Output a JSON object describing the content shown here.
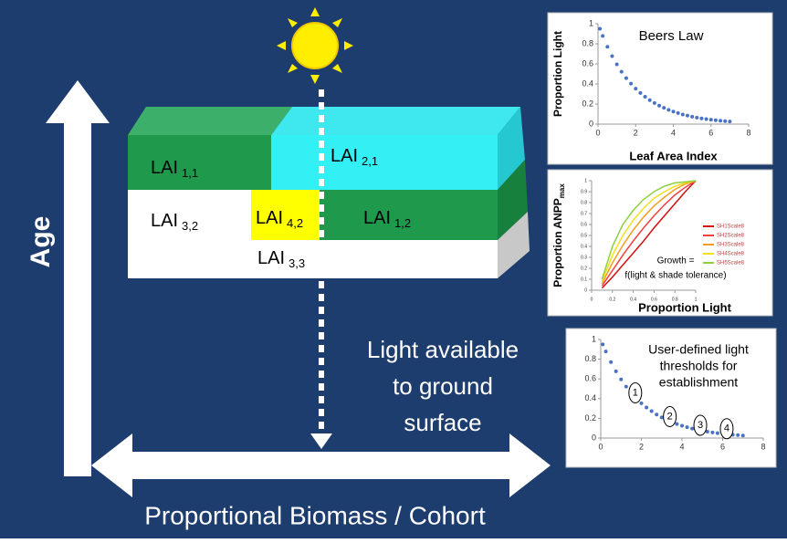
{
  "diagram": {
    "age_label": "Age",
    "biomass_label": "Proportional Biomass / Cohort",
    "light_text": [
      "Light available",
      "to ground",
      "surface"
    ],
    "lai_blocks": [
      {
        "label": "LAI",
        "sub": "1,1"
      },
      {
        "label": "LAI",
        "sub": "2,1"
      },
      {
        "label": "LAI",
        "sub": "3,2"
      },
      {
        "label": "LAI",
        "sub": "4,2"
      },
      {
        "label": "LAI",
        "sub": "1,2"
      },
      {
        "label": "LAI",
        "sub": "3,3"
      }
    ]
  },
  "chart_data": [
    {
      "type": "scatter",
      "title": "Beers Law",
      "x_label": "Leaf Area Index",
      "y_label": "Proportion Light",
      "color": "#4a72c4",
      "x": [
        0.1,
        0.25,
        0.5,
        0.75,
        1,
        1.25,
        1.5,
        1.75,
        2,
        2.25,
        2.5,
        2.75,
        3,
        3.25,
        3.5,
        3.75,
        4,
        4.25,
        4.5,
        4.75,
        5,
        5.25,
        5.5,
        5.75,
        6,
        6.25,
        6.5,
        6.75,
        7
      ],
      "values": [
        0.95,
        0.878,
        0.771,
        0.677,
        0.595,
        0.522,
        0.458,
        0.403,
        0.353,
        0.31,
        0.273,
        0.239,
        0.21,
        0.184,
        0.162,
        0.142,
        0.125,
        0.11,
        0.096,
        0.085,
        0.074,
        0.065,
        0.057,
        0.05,
        0.044,
        0.039,
        0.034,
        0.03,
        0.026
      ],
      "xlim": [
        0,
        8
      ],
      "xticks": [
        0,
        2,
        4,
        6,
        8
      ],
      "ylim": [
        0,
        1
      ],
      "yticks": [
        0,
        0.2,
        0.4,
        0.6,
        0.8,
        1
      ]
    },
    {
      "type": "line",
      "x_label": "Proportion Light",
      "y_label": "Proportion ANPP",
      "y_label_sub": "max",
      "annotation": [
        "Growth =",
        "f(light & shade tolerance)"
      ],
      "x": [
        0.1,
        0.2,
        0.3,
        0.4,
        0.5,
        0.6,
        0.7,
        0.8,
        0.9,
        1
      ],
      "series": [
        {
          "name": "SH1Scale8",
          "color": "#d01010",
          "values": [
            0.02,
            0.12,
            0.23,
            0.34,
            0.45,
            0.57,
            0.68,
            0.79,
            0.9,
            1
          ]
        },
        {
          "name": "SH2Scale8",
          "color": "#f04040",
          "values": [
            0.04,
            0.18,
            0.32,
            0.45,
            0.57,
            0.68,
            0.78,
            0.87,
            0.94,
            1
          ]
        },
        {
          "name": "SH3Scale8",
          "color": "#f0a020",
          "values": [
            0.06,
            0.25,
            0.41,
            0.55,
            0.67,
            0.77,
            0.85,
            0.92,
            0.97,
            1
          ]
        },
        {
          "name": "SH4Scale8",
          "color": "#f0e020",
          "values": [
            0.08,
            0.32,
            0.5,
            0.64,
            0.75,
            0.84,
            0.9,
            0.95,
            0.98,
            1
          ]
        },
        {
          "name": "SH5Scale8",
          "color": "#90d040",
          "values": [
            0.1,
            0.4,
            0.6,
            0.73,
            0.83,
            0.9,
            0.95,
            0.98,
            0.99,
            1
          ]
        }
      ],
      "xlim": [
        0,
        1
      ],
      "xticks": [
        0,
        0.2,
        0.4,
        0.6,
        0.8,
        1
      ],
      "ylim": [
        0,
        1
      ],
      "yticks": [
        0,
        0.1,
        0.2,
        0.3,
        0.4,
        0.5,
        0.6,
        0.7,
        0.8,
        0.9,
        1
      ]
    },
    {
      "type": "scatter",
      "annotation": [
        "User-defined light",
        "thresholds for",
        "establishment"
      ],
      "color": "#4a72c4",
      "x": [
        0.1,
        0.25,
        0.5,
        0.75,
        1,
        1.25,
        1.5,
        1.75,
        2,
        2.25,
        2.5,
        2.75,
        3,
        3.25,
        3.5,
        3.75,
        4,
        4.25,
        4.5,
        4.75,
        5,
        5.25,
        5.5,
        5.75,
        6,
        6.25,
        6.5,
        6.75,
        7
      ],
      "values": [
        0.95,
        0.878,
        0.771,
        0.677,
        0.595,
        0.522,
        0.458,
        0.403,
        0.353,
        0.31,
        0.273,
        0.239,
        0.21,
        0.184,
        0.162,
        0.142,
        0.125,
        0.11,
        0.096,
        0.085,
        0.074,
        0.065,
        0.057,
        0.05,
        0.044,
        0.039,
        0.034,
        0.03,
        0.026
      ],
      "thresholds": [
        {
          "label": "1",
          "x": 1.7
        },
        {
          "label": "2",
          "x": 3.4
        },
        {
          "label": "3",
          "x": 4.9
        },
        {
          "label": "4",
          "x": 6.2
        }
      ],
      "xlim": [
        0,
        8
      ],
      "xticks": [
        0,
        2,
        4,
        6,
        8
      ],
      "ylim": [
        0,
        1
      ],
      "yticks": [
        0,
        0.2,
        0.4,
        0.6,
        0.8,
        1
      ]
    }
  ]
}
